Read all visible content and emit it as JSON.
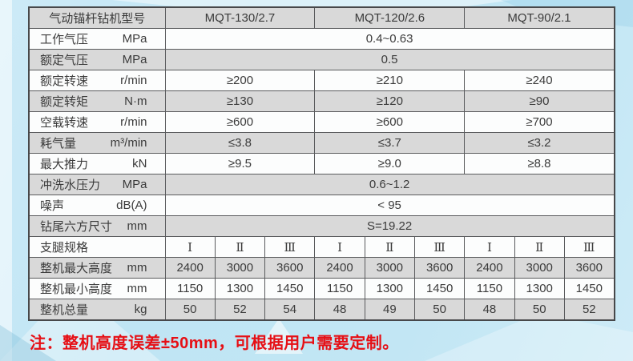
{
  "colors": {
    "bg_blue": "#c2e6f4",
    "row_gray": "#d9d9d9",
    "row_white": "#fcfdfd",
    "border_dark": "#47484a",
    "border_mid": "#5a5b5d",
    "text": "#3b3b3b",
    "note_red": "#e60f15"
  },
  "table": {
    "header": {
      "label": "气动锚杆钻机型号",
      "models": [
        "MQT-130/2.7",
        "MQT-120/2.6",
        "MQT-90/2.1"
      ]
    },
    "rows": [
      {
        "label": "工作气压",
        "unit": "MPa",
        "span": "all",
        "values": [
          "0.4~0.63"
        ]
      },
      {
        "label": "额定气压",
        "unit": "MPa",
        "span": "all",
        "values": [
          "0.5"
        ]
      },
      {
        "label": "额定转速",
        "unit": "r/min",
        "span": "group",
        "values": [
          "≥200",
          "≥210",
          "≥240"
        ]
      },
      {
        "label": "额定转矩",
        "unit": "N·m",
        "span": "group",
        "values": [
          "≥130",
          "≥120",
          "≥90"
        ]
      },
      {
        "label": "空载转速",
        "unit": "r/min",
        "span": "group",
        "values": [
          "≥600",
          "≥600",
          "≥700"
        ]
      },
      {
        "label": "耗气量",
        "unit": "m³/min",
        "span": "group",
        "values": [
          "≤3.8",
          "≤3.7",
          "≤3.2"
        ]
      },
      {
        "label": "最大推力",
        "unit": "kN",
        "span": "group",
        "values": [
          "≥9.5",
          "≥9.0",
          "≥8.8"
        ]
      },
      {
        "label": "冲洗水压力",
        "unit": "MPa",
        "span": "all",
        "values": [
          "0.6~1.2"
        ]
      },
      {
        "label": "噪声",
        "unit": "dB(A)",
        "span": "all",
        "values": [
          "< 95"
        ]
      },
      {
        "label": "钻尾六方尺寸",
        "unit": "mm",
        "span": "all",
        "values": [
          "S=19.22"
        ]
      },
      {
        "label": "支腿规格",
        "unit": "",
        "span": "each",
        "roman": true,
        "values": [
          "Ⅰ",
          "Ⅱ",
          "Ⅲ",
          "Ⅰ",
          "Ⅱ",
          "Ⅲ",
          "Ⅰ",
          "Ⅱ",
          "Ⅲ"
        ]
      },
      {
        "label": "整机最大高度",
        "unit": "mm",
        "span": "each",
        "values": [
          "2400",
          "3000",
          "3600",
          "2400",
          "3000",
          "3600",
          "2400",
          "3000",
          "3600"
        ]
      },
      {
        "label": "整机最小高度",
        "unit": "mm",
        "span": "each",
        "values": [
          "1150",
          "1300",
          "1450",
          "1150",
          "1300",
          "1450",
          "1150",
          "1300",
          "1450"
        ]
      },
      {
        "label": "整机总量",
        "unit": "kg",
        "span": "each",
        "values": [
          "50",
          "52",
          "54",
          "48",
          "49",
          "50",
          "48",
          "50",
          "52"
        ]
      }
    ]
  },
  "note": "注：整机高度误差±50mm，可根据用户需要定制。"
}
